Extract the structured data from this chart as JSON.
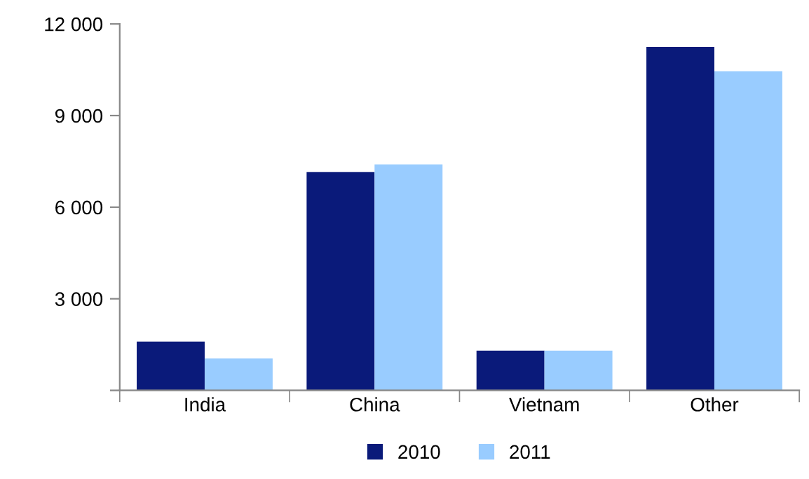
{
  "chart_data": {
    "type": "bar",
    "categories": [
      "India",
      "China",
      "Vietnam",
      "Other"
    ],
    "series": [
      {
        "name": "2010",
        "color": "#0a1a7a",
        "values": [
          1600,
          7150,
          1300,
          11250
        ]
      },
      {
        "name": "2011",
        "color": "#99ccff",
        "values": [
          1050,
          7400,
          1300,
          10450
        ]
      }
    ],
    "ylim": [
      0,
      12000
    ],
    "yticks": [
      {
        "value": 0,
        "label": null
      },
      {
        "value": 3000,
        "label": "3 000"
      },
      {
        "value": 6000,
        "label": "6 000"
      },
      {
        "value": 9000,
        "label": "9 000"
      },
      {
        "value": 12000,
        "label": "12 000"
      }
    ],
    "grid": false,
    "legend": "bottom"
  }
}
